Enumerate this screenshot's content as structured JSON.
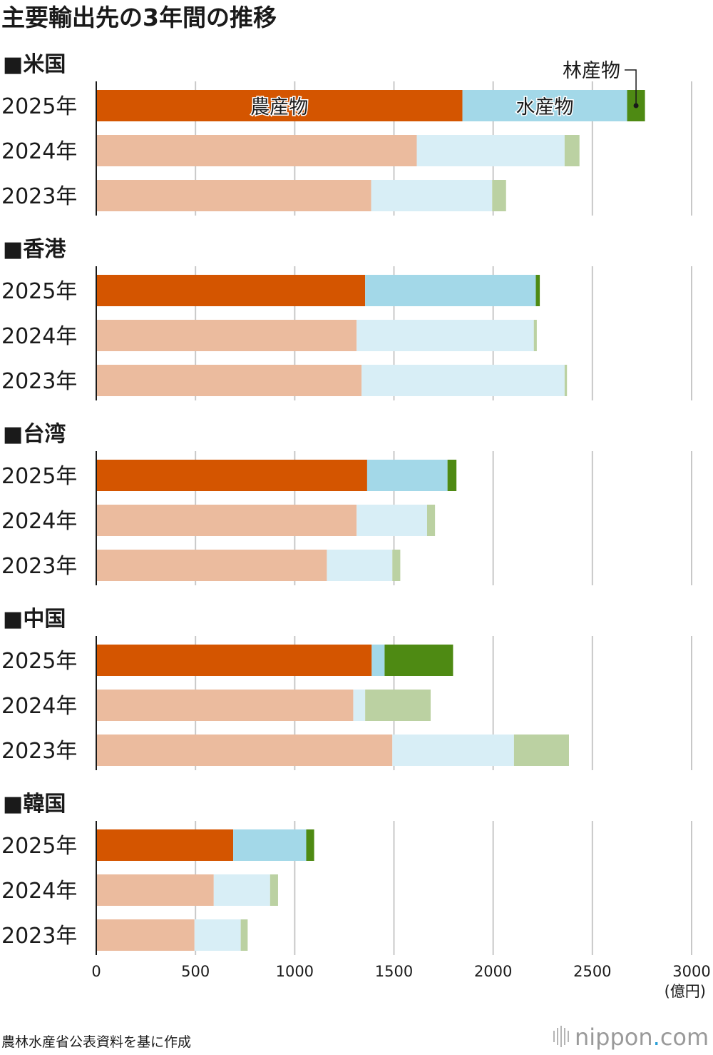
{
  "title": "主要輸出先の3年間の推移",
  "source": "農林水産省公表資料を基に作成",
  "logo": {
    "name": "nippon",
    "dot": ".",
    "tld": "com"
  },
  "chart_data": {
    "type": "bar",
    "orientation": "horizontal",
    "stacked": true,
    "unit": "(億円)",
    "xlim": [
      0,
      3000
    ],
    "xticks": [
      "0",
      "500",
      "1000",
      "1500",
      "2000",
      "2500",
      "3000"
    ],
    "grid": true,
    "series": [
      {
        "name": "農産物",
        "color_current": "#d45500",
        "color_past": "#ebbb9e"
      },
      {
        "name": "水産物",
        "color_current": "#a3d8e8",
        "color_past": "#d8eef6"
      },
      {
        "name": "林産物",
        "color_current": "#4e8a13",
        "color_past": "#bbd1a2"
      }
    ],
    "groups": [
      {
        "label": "■米国",
        "rows": [
          {
            "year": "2025年",
            "values": [
              1845,
              830,
              90
            ]
          },
          {
            "year": "2024年",
            "values": [
              1615,
              745,
              75
            ]
          },
          {
            "year": "2023年",
            "values": [
              1385,
              610,
              70
            ]
          }
        ]
      },
      {
        "label": "■香港",
        "rows": [
          {
            "year": "2025年",
            "values": [
              1355,
              860,
              20
            ]
          },
          {
            "year": "2024年",
            "values": [
              1312,
              893,
              15
            ]
          },
          {
            "year": "2023年",
            "values": [
              1337,
              1023,
              12
            ]
          }
        ]
      },
      {
        "label": "■台湾",
        "rows": [
          {
            "year": "2025年",
            "values": [
              1365,
              405,
              45
            ]
          },
          {
            "year": "2024年",
            "values": [
              1312,
              355,
              40
            ]
          },
          {
            "year": "2023年",
            "values": [
              1162,
              330,
              40
            ]
          }
        ]
      },
      {
        "label": "■中国",
        "rows": [
          {
            "year": "2025年",
            "values": [
              1388,
              65,
              345
            ]
          },
          {
            "year": "2024年",
            "values": [
              1295,
              60,
              330
            ]
          },
          {
            "year": "2023年",
            "values": [
              1492,
              613,
              277
            ]
          }
        ]
      },
      {
        "label": "■韓国",
        "rows": [
          {
            "year": "2025年",
            "values": [
              690,
              368,
              40
            ]
          },
          {
            "year": "2024年",
            "values": [
              592,
              284,
              40
            ]
          },
          {
            "year": "2023年",
            "values": [
              495,
              233,
              35
            ]
          }
        ]
      }
    ],
    "legend_labels": {
      "agri": "農産物",
      "fish": "水産物",
      "forest": "林産物"
    }
  }
}
